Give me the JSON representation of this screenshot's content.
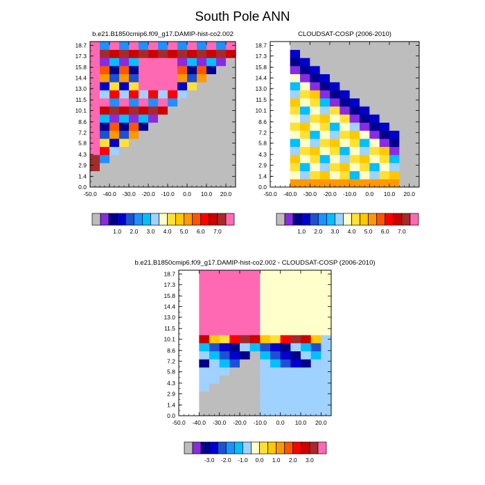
{
  "figure": {
    "title": "South Pole ANN"
  },
  "colors": {
    "abs": [
      "#bdbdbd",
      "#8a2be2",
      "#00008b",
      "#0000cd",
      "#1e50d2",
      "#1e90ff",
      "#00bfff",
      "#a0d2ff",
      "#ffffcc",
      "#ffe135",
      "#ffc800",
      "#ff9900",
      "#ff5500",
      "#ff0000",
      "#cc0000",
      "#a52a2a",
      "#ff69b4"
    ],
    "diff": [
      "#bdbdbd",
      "#8a2be2",
      "#00008b",
      "#0000cd",
      "#1e50d2",
      "#1e90ff",
      "#00bfff",
      "#a0d2ff",
      "#ffffcc",
      "#ffe135",
      "#ffc800",
      "#ff9900",
      "#ff5500",
      "#ff0000",
      "#cc0000",
      "#a52a2a",
      "#ff69b4"
    ]
  },
  "chart_data": [
    {
      "type": "heatmap",
      "title": "b.e21.B1850cmip6.f09_g17.DAMIP-hist-co2.002",
      "xlim": [
        -50,
        25
      ],
      "ylim": [
        0,
        19.2
      ],
      "x_ticks": [
        "-50.0",
        "-40.0",
        "-30.0",
        "-20.0",
        "-10.0",
        "0.0",
        "10.0",
        "20.0"
      ],
      "y_ticks": [
        "0.0",
        "1.4",
        "2.9",
        "4.3",
        "5.8",
        "7.2",
        "8.6",
        "10.1",
        "11.5",
        "13.0",
        "14.4",
        "15.8",
        "17.3",
        "18.7"
      ],
      "colorbar_labels": [
        "1.0",
        "2.0",
        "3.0",
        "4.0",
        "5.0",
        "6.0",
        "7.0"
      ]
    },
    {
      "type": "heatmap",
      "title": "CLOUDSAT-COSP (2006-2010)",
      "xlim": [
        -50,
        25
      ],
      "ylim": [
        0,
        19.2
      ],
      "x_ticks": [
        "-50.0",
        "-40.0",
        "-30.0",
        "-20.0",
        "-10.0",
        "0.0",
        "10.0",
        "20.0"
      ],
      "y_ticks": [
        "0.0",
        "1.4",
        "2.9",
        "4.3",
        "5.8",
        "7.2",
        "8.6",
        "10.1",
        "11.5",
        "13.0",
        "14.4",
        "15.8",
        "17.3",
        "18.7"
      ],
      "colorbar_labels": [
        "1.0",
        "2.0",
        "3.0",
        "4.0",
        "5.0",
        "6.0",
        "7.0"
      ]
    },
    {
      "type": "heatmap",
      "title": "b.e21.B1850cmip6.f09_g17.DAMIP-hist-co2.002 - CLOUDSAT-COSP (2006-2010)",
      "xlim": [
        -50,
        25
      ],
      "ylim": [
        0,
        19.2
      ],
      "x_ticks": [
        "-50.0",
        "-40.0",
        "-30.0",
        "-20.0",
        "-10.0",
        "0.0",
        "10.0",
        "20.0"
      ],
      "y_ticks": [
        "0.0",
        "1.4",
        "2.9",
        "4.3",
        "5.8",
        "7.2",
        "8.6",
        "10.1",
        "11.5",
        "13.0",
        "14.4",
        "15.8",
        "17.3",
        "18.7"
      ],
      "colorbar_labels": [
        "-3.0",
        "-2.0",
        "-1.0",
        "0.0",
        "1.0",
        "2.0",
        "3.0"
      ]
    }
  ]
}
